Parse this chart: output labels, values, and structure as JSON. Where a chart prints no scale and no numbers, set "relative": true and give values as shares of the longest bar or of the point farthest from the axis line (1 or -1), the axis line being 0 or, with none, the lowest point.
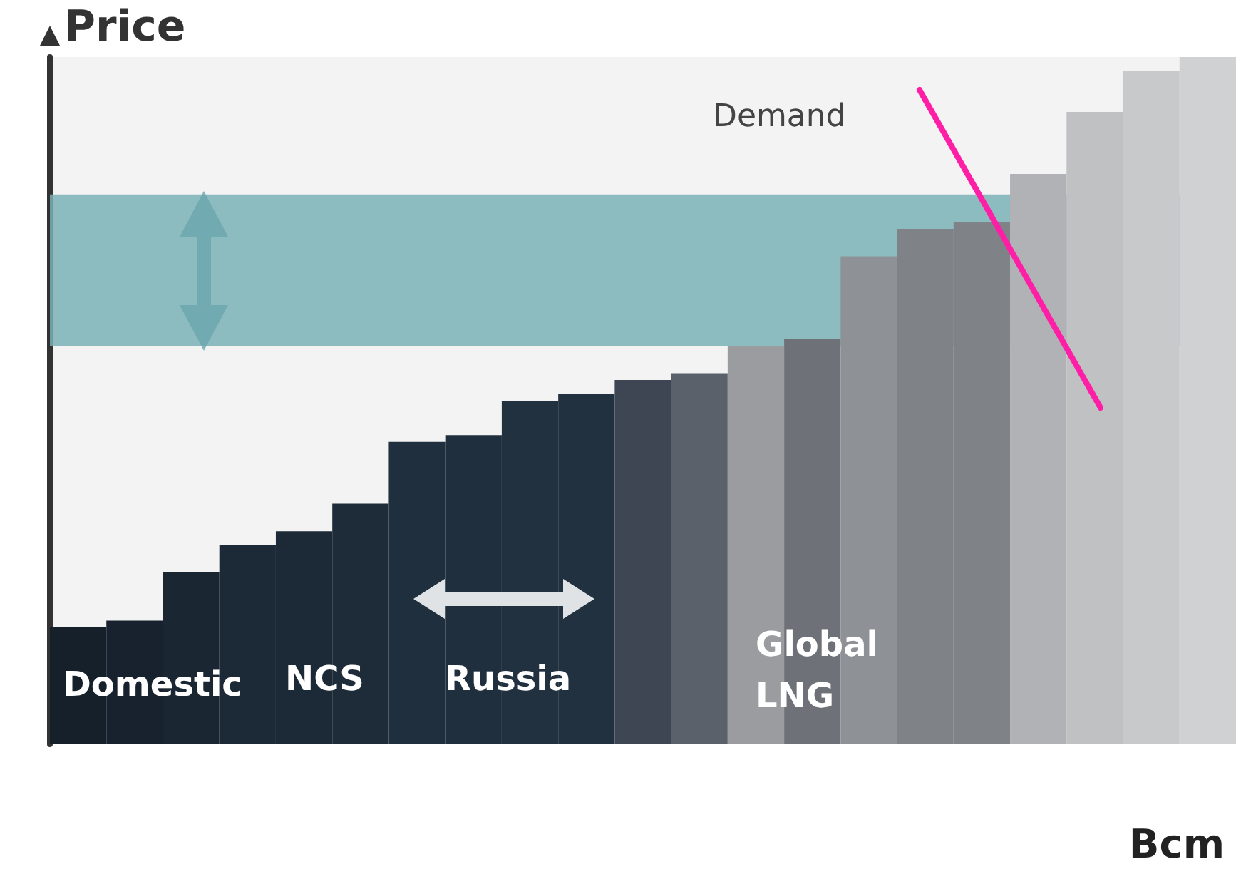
{
  "chart_data": {
    "type": "bar",
    "relative": true,
    "ylabel": "Price",
    "xlabel": "Bcm",
    "categories": [
      null,
      null,
      null,
      null,
      null,
      null,
      null,
      null,
      null,
      null,
      null,
      null,
      null,
      null,
      null,
      null,
      null,
      null,
      null,
      null,
      null
    ],
    "values": [
      0.17,
      0.18,
      0.25,
      0.29,
      0.31,
      0.35,
      0.44,
      0.45,
      0.5,
      0.51,
      0.53,
      0.54,
      0.58,
      0.59,
      0.71,
      0.75,
      0.76,
      0.83,
      0.92,
      0.98,
      1.0
    ],
    "colors": [
      "#15202b",
      "#17222e",
      "#1a2632",
      "#1c2a37",
      "#1c2a37",
      "#1e2c3a",
      "#202f3d",
      "#202f3d",
      "#22313f",
      "#22313f",
      "#3d4652",
      "#5a616a",
      "#9a9c9f",
      "#6e7278",
      "#8e9196",
      "#7f8287",
      "#7f8287",
      "#b0b2b5",
      "#c0c1c3",
      "#c8c9cb",
      "#d0d1d3"
    ],
    "bands": [
      {
        "axis": "y",
        "from": 0.58,
        "to": 0.8,
        "color": "#7ab1b6"
      }
    ],
    "annotations": [
      "Demand",
      "Domestic",
      "NCS",
      "Russia",
      "Global\nLNG"
    ],
    "grid": false
  }
}
